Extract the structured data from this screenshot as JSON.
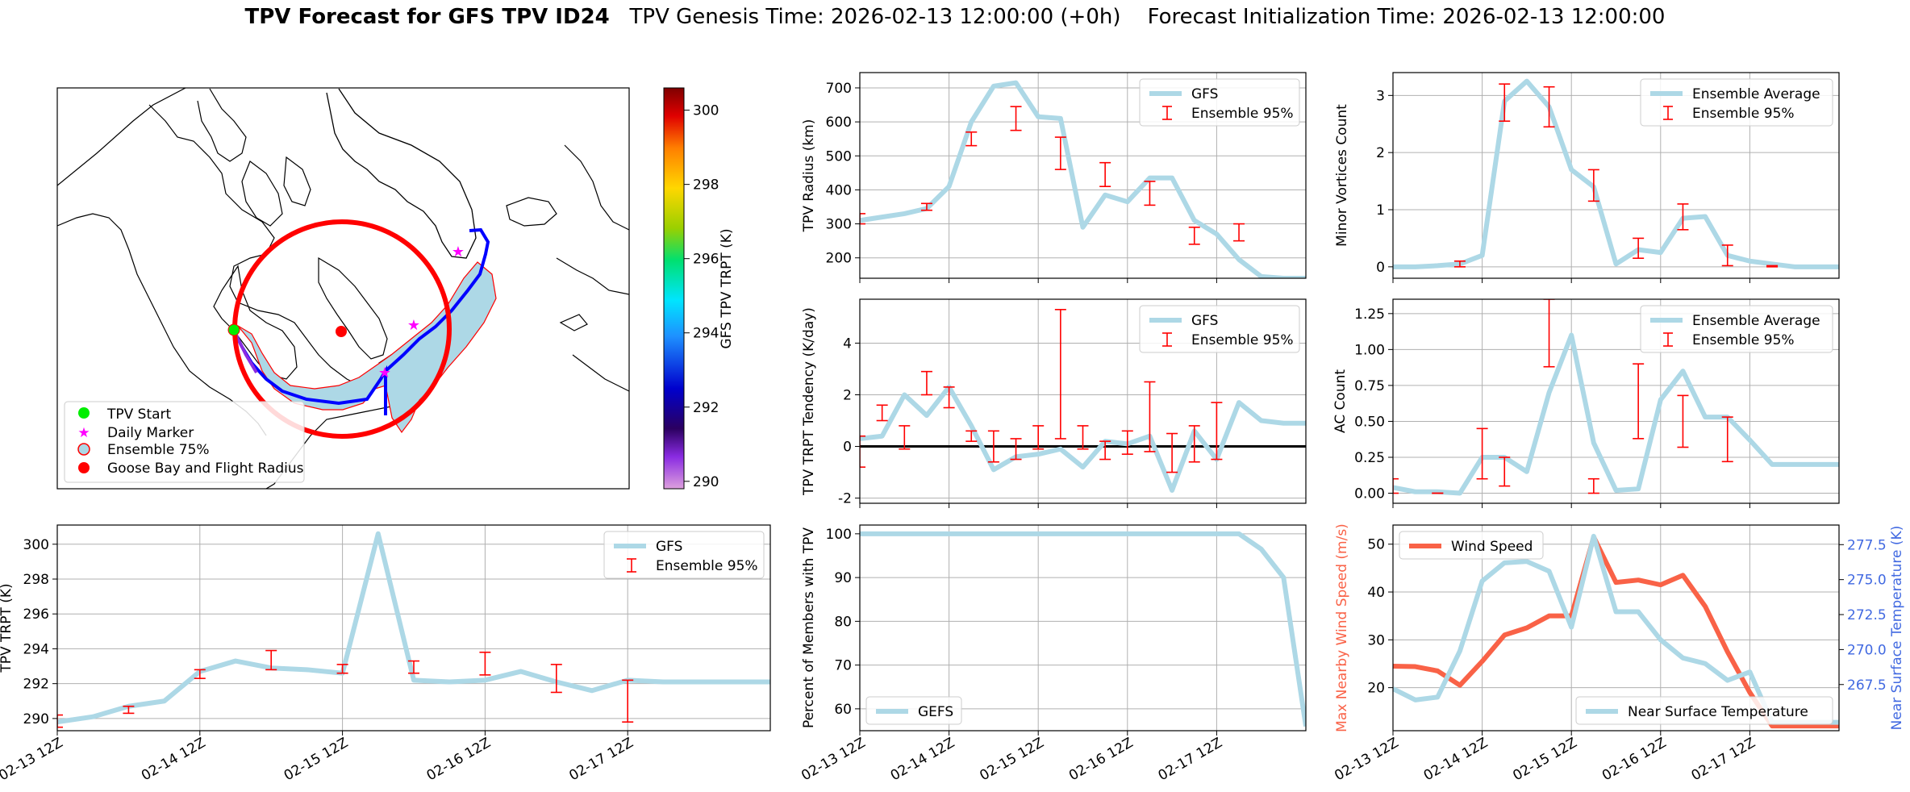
{
  "suptitle": {
    "bold": "TPV Forecast for GFS TPV ID24",
    "genesis": "TPV Genesis Time: 2026-02-13 12:00:00 (+0h)",
    "init": "Forecast Initialization Time: 2026-02-13 12:00:00"
  },
  "time_ticks": [
    "02-13 12Z",
    "02-14 12Z",
    "02-15 12Z",
    "02-16 12Z",
    "02-17 12Z"
  ],
  "colors": {
    "gfs": "#add8e6",
    "err": "#ff0000",
    "wind": "#f96247",
    "temp_axis": "#4169e1",
    "track": "#0000ff"
  },
  "map": {
    "legend": [
      "TPV Start",
      "Daily Marker",
      "Ensemble 75%",
      "Goose Bay and Flight Radius"
    ],
    "colorbar_label": "GFS TPV TRPT (K)",
    "colorbar_ticks": [
      290,
      292,
      294,
      296,
      298,
      300
    ],
    "colorbar_range": [
      289.8,
      300.6
    ]
  },
  "chart_data": [
    {
      "id": "radius",
      "type": "line",
      "ylabel": "TPV Radius (km)",
      "ylim": [
        140,
        745
      ],
      "yticks": [
        200,
        300,
        400,
        500,
        600,
        700
      ],
      "legend": [
        "GFS",
        "Ensemble 95%"
      ],
      "series": [
        {
          "name": "GFS",
          "x": [
            0,
            0.25,
            0.5,
            0.75,
            1,
            1.25,
            1.5,
            1.75,
            2,
            2.25,
            2.5,
            2.75,
            3,
            3.25,
            3.5,
            3.75,
            4,
            4.25,
            4.5,
            4.75,
            5
          ],
          "values": [
            310,
            320,
            330,
            345,
            410,
            600,
            705,
            715,
            615,
            610,
            290,
            385,
            365,
            435,
            435,
            310,
            270,
            195,
            145,
            140,
            140
          ]
        }
      ],
      "errorbars": [
        {
          "x": 0,
          "lo": 300,
          "hi": 330
        },
        {
          "x": 0.75,
          "lo": 340,
          "hi": 360
        },
        {
          "x": 1.25,
          "lo": 530,
          "hi": 570
        },
        {
          "x": 1.75,
          "lo": 575,
          "hi": 645
        },
        {
          "x": 2.25,
          "lo": 460,
          "hi": 555
        },
        {
          "x": 2.75,
          "lo": 410,
          "hi": 480
        },
        {
          "x": 3.25,
          "lo": 355,
          "hi": 425
        },
        {
          "x": 3.75,
          "lo": 240,
          "hi": 290
        },
        {
          "x": 4.25,
          "lo": 250,
          "hi": 300
        }
      ]
    },
    {
      "id": "minor",
      "type": "line",
      "ylabel": "Minor Vortices Count",
      "ylim": [
        -0.2,
        3.4
      ],
      "yticks": [
        0,
        1,
        2,
        3
      ],
      "legend": [
        "Ensemble Average",
        "Ensemble 95%"
      ],
      "series": [
        {
          "name": "Ensemble Average",
          "x": [
            0,
            0.25,
            0.5,
            0.75,
            1,
            1.25,
            1.5,
            1.75,
            2,
            2.25,
            2.5,
            2.75,
            3,
            3.25,
            3.5,
            3.75,
            4,
            4.25,
            4.5,
            4.75,
            5
          ],
          "values": [
            0,
            0,
            0.02,
            0.05,
            0.2,
            2.9,
            3.25,
            2.8,
            1.7,
            1.4,
            0.05,
            0.3,
            0.25,
            0.85,
            0.88,
            0.2,
            0.1,
            0.05,
            0,
            0,
            0
          ]
        }
      ],
      "errorbars": [
        {
          "x": 0.75,
          "lo": 0,
          "hi": 0.1
        },
        {
          "x": 1.25,
          "lo": 2.55,
          "hi": 3.2
        },
        {
          "x": 1.75,
          "lo": 2.45,
          "hi": 3.15
        },
        {
          "x": 2.25,
          "lo": 1.15,
          "hi": 1.7
        },
        {
          "x": 2.75,
          "lo": 0.15,
          "hi": 0.5
        },
        {
          "x": 3.25,
          "lo": 0.65,
          "hi": 1.1
        },
        {
          "x": 3.75,
          "lo": 0.02,
          "hi": 0.38
        },
        {
          "x": 4.25,
          "lo": 0,
          "hi": 0.02
        }
      ]
    },
    {
      "id": "tendency",
      "type": "line",
      "ylabel": "TPV TRPT Tendency (K/day)",
      "ylim": [
        -2.2,
        5.7
      ],
      "yticks": [
        -2,
        0,
        2,
        4
      ],
      "legend": [
        "GFS",
        "Ensemble 95%"
      ],
      "series": [
        {
          "name": "GFS",
          "x": [
            0,
            0.25,
            0.5,
            0.75,
            1,
            1.25,
            1.5,
            1.75,
            2,
            2.25,
            2.5,
            2.75,
            3,
            3.25,
            3.5,
            3.75,
            4,
            4.25,
            4.5,
            4.75,
            5
          ],
          "values": [
            0.3,
            0.4,
            2.0,
            1.2,
            2.3,
            0.8,
            -0.9,
            -0.4,
            -0.3,
            -0.1,
            -0.8,
            0.2,
            0.1,
            0.4,
            -1.7,
            0.6,
            -0.5,
            1.7,
            1.0,
            0.9,
            0.9
          ]
        }
      ],
      "errorbars": [
        {
          "x": 0,
          "lo": -0.8,
          "hi": 0.4
        },
        {
          "x": 0.25,
          "lo": 1.0,
          "hi": 1.6
        },
        {
          "x": 0.5,
          "lo": -0.1,
          "hi": 0.8
        },
        {
          "x": 0.75,
          "lo": 2.0,
          "hi": 2.9
        },
        {
          "x": 1,
          "lo": 1.5,
          "hi": 2.3
        },
        {
          "x": 1.25,
          "lo": 0.2,
          "hi": 0.6
        },
        {
          "x": 1.5,
          "lo": -0.6,
          "hi": 0.6
        },
        {
          "x": 1.75,
          "lo": -0.5,
          "hi": 0.3
        },
        {
          "x": 2,
          "lo": -0.1,
          "hi": 0.8
        },
        {
          "x": 2.25,
          "lo": 0.3,
          "hi": 5.3
        },
        {
          "x": 2.5,
          "lo": -0.1,
          "hi": 0.8
        },
        {
          "x": 2.75,
          "lo": -0.5,
          "hi": 0.2
        },
        {
          "x": 3,
          "lo": -0.3,
          "hi": 0.6
        },
        {
          "x": 3.25,
          "lo": -0.2,
          "hi": 2.5
        },
        {
          "x": 3.5,
          "lo": -1.0,
          "hi": 0.5
        },
        {
          "x": 3.75,
          "lo": -0.6,
          "hi": 0.8
        },
        {
          "x": 4,
          "lo": -0.5,
          "hi": 1.7
        }
      ],
      "zero_line": 0
    },
    {
      "id": "ac",
      "type": "line",
      "ylabel": "AC Count",
      "ylim": [
        -0.07,
        1.35
      ],
      "yticks": [
        0.0,
        0.25,
        0.5,
        0.75,
        1.0,
        1.25
      ],
      "ytick_labels": [
        "0.00",
        "0.25",
        "0.50",
        "0.75",
        "1.00",
        "1.25"
      ],
      "legend": [
        "Ensemble Average",
        "Ensemble 95%"
      ],
      "series": [
        {
          "name": "Ensemble Average",
          "x": [
            0,
            0.25,
            0.5,
            0.75,
            1,
            1.25,
            1.5,
            1.75,
            2,
            2.25,
            2.5,
            2.75,
            3,
            3.25,
            3.5,
            3.75,
            4,
            4.25,
            4.5,
            4.75,
            5
          ],
          "values": [
            0.04,
            0.01,
            0.01,
            0,
            0.25,
            0.25,
            0.15,
            0.7,
            1.1,
            0.35,
            0.02,
            0.03,
            0.65,
            0.85,
            0.53,
            0.53,
            0.37,
            0.2,
            0.2,
            0.2,
            0.2
          ]
        }
      ],
      "errorbars": [
        {
          "x": 0,
          "lo": 0,
          "hi": 0.1
        },
        {
          "x": 0.5,
          "lo": 0,
          "hi": 0
        },
        {
          "x": 1,
          "lo": 0.1,
          "hi": 0.45
        },
        {
          "x": 1.25,
          "lo": 0.05,
          "hi": 0.25
        },
        {
          "x": 1.75,
          "lo": 0.88,
          "hi": 1.35
        },
        {
          "x": 2.25,
          "lo": 0,
          "hi": 0.1
        },
        {
          "x": 2.75,
          "lo": 0.38,
          "hi": 0.9
        },
        {
          "x": 3.25,
          "lo": 0.32,
          "hi": 0.68
        },
        {
          "x": 3.75,
          "lo": 0.22,
          "hi": 0.53
        }
      ]
    },
    {
      "id": "trpt",
      "type": "line",
      "ylabel": "TPV TRPT (K)",
      "ylim": [
        289.3,
        301.1
      ],
      "yticks": [
        290,
        292,
        294,
        296,
        298,
        300
      ],
      "legend": [
        "GFS",
        "Ensemble 95%"
      ],
      "series": [
        {
          "name": "GFS",
          "x": [
            0,
            0.25,
            0.5,
            0.75,
            1,
            1.25,
            1.5,
            1.75,
            2,
            2.25,
            2.5,
            2.75,
            3,
            3.25,
            3.5,
            3.75,
            4,
            4.25,
            4.5,
            4.75,
            5
          ],
          "values": [
            289.8,
            290.1,
            290.7,
            291.0,
            292.7,
            293.3,
            292.9,
            292.8,
            292.6,
            300.6,
            292.2,
            292.1,
            292.2,
            292.7,
            292.1,
            291.6,
            292.2,
            292.1,
            292.1,
            292.1,
            292.1
          ]
        }
      ],
      "errorbars": [
        {
          "x": 0,
          "lo": 289.5,
          "hi": 290.2
        },
        {
          "x": 0.5,
          "lo": 290.3,
          "hi": 290.7
        },
        {
          "x": 1,
          "lo": 292.3,
          "hi": 292.8
        },
        {
          "x": 1.5,
          "lo": 292.8,
          "hi": 293.9
        },
        {
          "x": 2,
          "lo": 292.6,
          "hi": 293.1
        },
        {
          "x": 2.5,
          "lo": 292.6,
          "hi": 293.3
        },
        {
          "x": 3,
          "lo": 292.5,
          "hi": 293.8
        },
        {
          "x": 3.5,
          "lo": 291.5,
          "hi": 293.1
        },
        {
          "x": 4,
          "lo": 289.8,
          "hi": 292.2
        }
      ]
    },
    {
      "id": "members",
      "type": "line",
      "ylabel": "Percent of Members with TPV",
      "ylim": [
        55,
        102
      ],
      "yticks": [
        60,
        70,
        80,
        90,
        100
      ],
      "legend": [
        "GEFS"
      ],
      "series": [
        {
          "name": "GEFS",
          "x": [
            0,
            0.5,
            1,
            1.5,
            2,
            2.5,
            3,
            3.5,
            3.75,
            4,
            4.25,
            4.5,
            4.75,
            5
          ],
          "values": [
            100,
            100,
            100,
            100,
            100,
            100,
            100,
            100,
            100,
            100,
            100,
            96.5,
            90,
            56
          ]
        }
      ]
    },
    {
      "id": "wind",
      "type": "line",
      "ylabel": "Max Nearby Wind Speed (m/s)",
      "ylim": [
        11,
        54
      ],
      "yticks": [
        20,
        30,
        40,
        50
      ],
      "y2label": "Near Surface Temperature (K)",
      "y2lim": [
        264.2,
        278.9
      ],
      "y2ticks": [
        267.5,
        270.0,
        272.5,
        275.0,
        277.5
      ],
      "y2tick_labels": [
        "267.5",
        "270.0",
        "272.5",
        "275.0",
        "277.5"
      ],
      "legend": [
        "Wind Speed"
      ],
      "legend2": [
        "Near Surface Temperature"
      ],
      "series": [
        {
          "name": "Wind Speed",
          "axis": "left",
          "x": [
            0,
            0.25,
            0.5,
            0.75,
            1,
            1.25,
            1.5,
            1.75,
            2,
            2.25,
            2.5,
            2.75,
            3,
            3.25,
            3.5,
            3.75,
            4,
            4.25,
            4.5,
            4.75,
            5
          ],
          "values": [
            24.5,
            24.4,
            23.5,
            20.5,
            25.5,
            31,
            32.5,
            35,
            35,
            51.5,
            42,
            42.5,
            41.5,
            43.5,
            37,
            27.5,
            19,
            12,
            12,
            12,
            12
          ]
        },
        {
          "name": "Near Surface Temperature",
          "axis": "right",
          "x": [
            0,
            0.25,
            0.5,
            0.75,
            1,
            1.25,
            1.5,
            1.75,
            2,
            2.25,
            2.5,
            2.75,
            3,
            3.25,
            3.5,
            3.75,
            4,
            4.25,
            4.5,
            4.75,
            5
          ],
          "values": [
            267.2,
            266.4,
            266.6,
            269.9,
            274.9,
            276.2,
            276.3,
            275.6,
            271.6,
            278.1,
            272.7,
            272.7,
            270.7,
            269.4,
            269.0,
            267.8,
            268.4,
            264.8,
            264.8,
            264.8,
            264.8
          ]
        }
      ]
    }
  ]
}
